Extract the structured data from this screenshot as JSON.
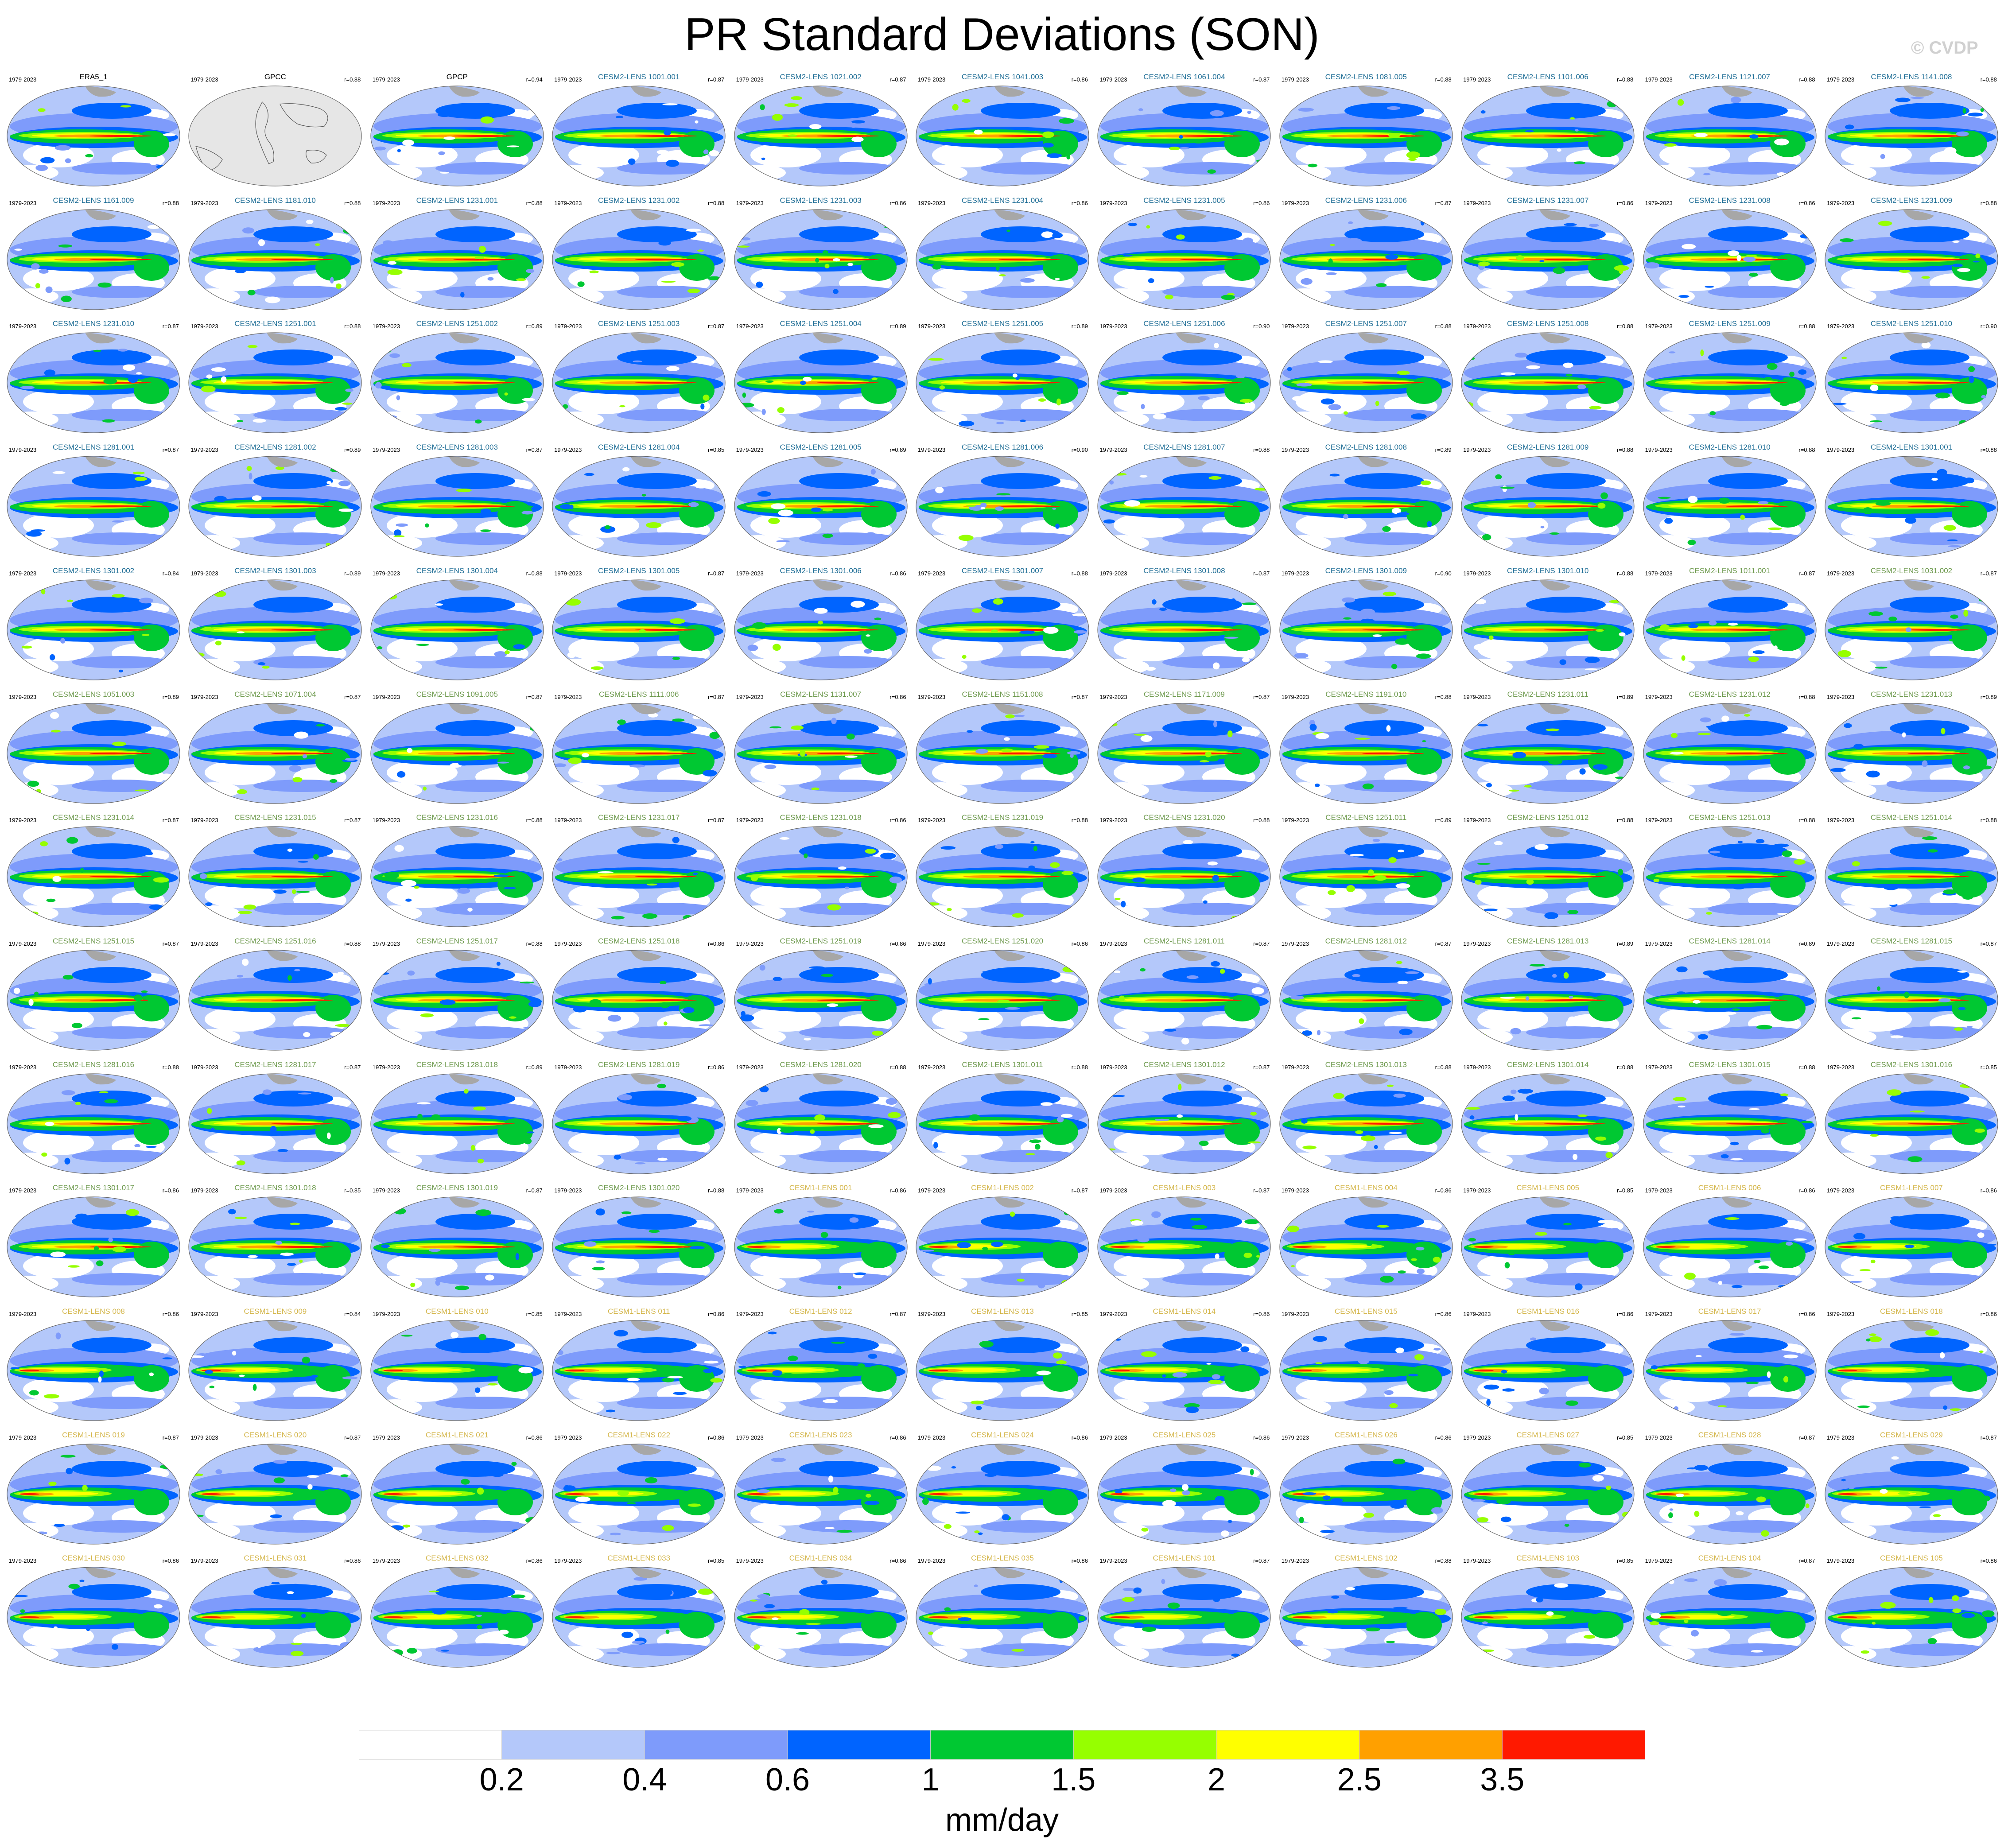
{
  "title": "PR Standard Deviations (SON)",
  "watermark": "© CVDP",
  "period_label": "1979-2023",
  "ensemble_colors": {
    "obs": "#000000",
    "CESM2-LENS-first50": "#1f6e96",
    "CESM2-LENS-second50": "#6e9a4e",
    "CESM1-LENS": "#d4b64a"
  },
  "panels": [
    {
      "title": "ERA5_1",
      "group": "obs",
      "corr": "",
      "kind": "data"
    },
    {
      "title": "GPCC",
      "group": "obs",
      "corr": "r=0.88",
      "kind": "missing"
    },
    {
      "title": "GPCP",
      "group": "obs",
      "corr": "r=0.94",
      "kind": "data"
    },
    {
      "title": "CESM2-LENS 1001.001",
      "group": "CESM2-LENS-first50",
      "corr": "r=0.87",
      "kind": "data"
    },
    {
      "title": "CESM2-LENS 1021.002",
      "group": "CESM2-LENS-first50",
      "corr": "r=0.87",
      "kind": "data"
    },
    {
      "title": "CESM2-LENS 1041.003",
      "group": "CESM2-LENS-first50",
      "corr": "r=0.86",
      "kind": "data"
    },
    {
      "title": "CESM2-LENS 1061.004",
      "group": "CESM2-LENS-first50",
      "corr": "r=0.87",
      "kind": "data"
    },
    {
      "title": "CESM2-LENS 1081.005",
      "group": "CESM2-LENS-first50",
      "corr": "r=0.88",
      "kind": "data"
    },
    {
      "title": "CESM2-LENS 1101.006",
      "group": "CESM2-LENS-first50",
      "corr": "r=0.88",
      "kind": "data"
    },
    {
      "title": "CESM2-LENS 1121.007",
      "group": "CESM2-LENS-first50",
      "corr": "r=0.88",
      "kind": "data"
    },
    {
      "title": "CESM2-LENS 1141.008",
      "group": "CESM2-LENS-first50",
      "corr": "r=0.88",
      "kind": "data"
    },
    {
      "title": "CESM2-LENS 1161.009",
      "group": "CESM2-LENS-first50",
      "corr": "r=0.88",
      "kind": "data"
    },
    {
      "title": "CESM2-LENS 1181.010",
      "group": "CESM2-LENS-first50",
      "corr": "r=0.88",
      "kind": "data"
    },
    {
      "title": "CESM2-LENS 1231.001",
      "group": "CESM2-LENS-first50",
      "corr": "r=0.88",
      "kind": "data"
    },
    {
      "title": "CESM2-LENS 1231.002",
      "group": "CESM2-LENS-first50",
      "corr": "r=0.88",
      "kind": "data"
    },
    {
      "title": "CESM2-LENS 1231.003",
      "group": "CESM2-LENS-first50",
      "corr": "r=0.86",
      "kind": "data"
    },
    {
      "title": "CESM2-LENS 1231.004",
      "group": "CESM2-LENS-first50",
      "corr": "r=0.86",
      "kind": "data"
    },
    {
      "title": "CESM2-LENS 1231.005",
      "group": "CESM2-LENS-first50",
      "corr": "r=0.86",
      "kind": "data"
    },
    {
      "title": "CESM2-LENS 1231.006",
      "group": "CESM2-LENS-first50",
      "corr": "r=0.87",
      "kind": "data"
    },
    {
      "title": "CESM2-LENS 1231.007",
      "group": "CESM2-LENS-first50",
      "corr": "r=0.86",
      "kind": "data"
    },
    {
      "title": "CESM2-LENS 1231.008",
      "group": "CESM2-LENS-first50",
      "corr": "r=0.86",
      "kind": "data"
    },
    {
      "title": "CESM2-LENS 1231.009",
      "group": "CESM2-LENS-first50",
      "corr": "r=0.88",
      "kind": "data"
    },
    {
      "title": "CESM2-LENS 1231.010",
      "group": "CESM2-LENS-first50",
      "corr": "r=0.87",
      "kind": "data"
    },
    {
      "title": "CESM2-LENS 1251.001",
      "group": "CESM2-LENS-first50",
      "corr": "r=0.88",
      "kind": "data"
    },
    {
      "title": "CESM2-LENS 1251.002",
      "group": "CESM2-LENS-first50",
      "corr": "r=0.89",
      "kind": "data"
    },
    {
      "title": "CESM2-LENS 1251.003",
      "group": "CESM2-LENS-first50",
      "corr": "r=0.87",
      "kind": "data"
    },
    {
      "title": "CESM2-LENS 1251.004",
      "group": "CESM2-LENS-first50",
      "corr": "r=0.89",
      "kind": "data"
    },
    {
      "title": "CESM2-LENS 1251.005",
      "group": "CESM2-LENS-first50",
      "corr": "r=0.89",
      "kind": "data"
    },
    {
      "title": "CESM2-LENS 1251.006",
      "group": "CESM2-LENS-first50",
      "corr": "r=0.90",
      "kind": "data"
    },
    {
      "title": "CESM2-LENS 1251.007",
      "group": "CESM2-LENS-first50",
      "corr": "r=0.88",
      "kind": "data"
    },
    {
      "title": "CESM2-LENS 1251.008",
      "group": "CESM2-LENS-first50",
      "corr": "r=0.88",
      "kind": "data"
    },
    {
      "title": "CESM2-LENS 1251.009",
      "group": "CESM2-LENS-first50",
      "corr": "r=0.88",
      "kind": "data"
    },
    {
      "title": "CESM2-LENS 1251.010",
      "group": "CESM2-LENS-first50",
      "corr": "r=0.90",
      "kind": "data"
    },
    {
      "title": "CESM2-LENS 1281.001",
      "group": "CESM2-LENS-first50",
      "corr": "r=0.87",
      "kind": "data"
    },
    {
      "title": "CESM2-LENS 1281.002",
      "group": "CESM2-LENS-first50",
      "corr": "r=0.89",
      "kind": "data"
    },
    {
      "title": "CESM2-LENS 1281.003",
      "group": "CESM2-LENS-first50",
      "corr": "r=0.87",
      "kind": "data"
    },
    {
      "title": "CESM2-LENS 1281.004",
      "group": "CESM2-LENS-first50",
      "corr": "r=0.85",
      "kind": "data"
    },
    {
      "title": "CESM2-LENS 1281.005",
      "group": "CESM2-LENS-first50",
      "corr": "r=0.89",
      "kind": "data"
    },
    {
      "title": "CESM2-LENS 1281.006",
      "group": "CESM2-LENS-first50",
      "corr": "r=0.90",
      "kind": "data"
    },
    {
      "title": "CESM2-LENS 1281.007",
      "group": "CESM2-LENS-first50",
      "corr": "r=0.88",
      "kind": "data"
    },
    {
      "title": "CESM2-LENS 1281.008",
      "group": "CESM2-LENS-first50",
      "corr": "r=0.89",
      "kind": "data"
    },
    {
      "title": "CESM2-LENS 1281.009",
      "group": "CESM2-LENS-first50",
      "corr": "r=0.88",
      "kind": "data"
    },
    {
      "title": "CESM2-LENS 1281.010",
      "group": "CESM2-LENS-first50",
      "corr": "r=0.88",
      "kind": "data"
    },
    {
      "title": "CESM2-LENS 1301.001",
      "group": "CESM2-LENS-first50",
      "corr": "r=0.88",
      "kind": "data"
    },
    {
      "title": "CESM2-LENS 1301.002",
      "group": "CESM2-LENS-first50",
      "corr": "r=0.84",
      "kind": "data"
    },
    {
      "title": "CESM2-LENS 1301.003",
      "group": "CESM2-LENS-first50",
      "corr": "r=0.89",
      "kind": "data"
    },
    {
      "title": "CESM2-LENS 1301.004",
      "group": "CESM2-LENS-first50",
      "corr": "r=0.88",
      "kind": "data"
    },
    {
      "title": "CESM2-LENS 1301.005",
      "group": "CESM2-LENS-first50",
      "corr": "r=0.87",
      "kind": "data"
    },
    {
      "title": "CESM2-LENS 1301.006",
      "group": "CESM2-LENS-first50",
      "corr": "r=0.86",
      "kind": "data"
    },
    {
      "title": "CESM2-LENS 1301.007",
      "group": "CESM2-LENS-first50",
      "corr": "r=0.88",
      "kind": "data"
    },
    {
      "title": "CESM2-LENS 1301.008",
      "group": "CESM2-LENS-first50",
      "corr": "r=0.87",
      "kind": "data"
    },
    {
      "title": "CESM2-LENS 1301.009",
      "group": "CESM2-LENS-first50",
      "corr": "r=0.90",
      "kind": "data"
    },
    {
      "title": "CESM2-LENS 1301.010",
      "group": "CESM2-LENS-first50",
      "corr": "r=0.88",
      "kind": "data"
    },
    {
      "title": "CESM2-LENS 1011.001",
      "group": "CESM2-LENS-second50",
      "corr": "r=0.87",
      "kind": "data"
    },
    {
      "title": "CESM2-LENS 1031.002",
      "group": "CESM2-LENS-second50",
      "corr": "r=0.87",
      "kind": "data"
    },
    {
      "title": "CESM2-LENS 1051.003",
      "group": "CESM2-LENS-second50",
      "corr": "r=0.89",
      "kind": "data"
    },
    {
      "title": "CESM2-LENS 1071.004",
      "group": "CESM2-LENS-second50",
      "corr": "r=0.87",
      "kind": "data"
    },
    {
      "title": "CESM2-LENS 1091.005",
      "group": "CESM2-LENS-second50",
      "corr": "r=0.87",
      "kind": "data"
    },
    {
      "title": "CESM2-LENS 1111.006",
      "group": "CESM2-LENS-second50",
      "corr": "r=0.87",
      "kind": "data"
    },
    {
      "title": "CESM2-LENS 1131.007",
      "group": "CESM2-LENS-second50",
      "corr": "r=0.86",
      "kind": "data"
    },
    {
      "title": "CESM2-LENS 1151.008",
      "group": "CESM2-LENS-second50",
      "corr": "r=0.87",
      "kind": "data"
    },
    {
      "title": "CESM2-LENS 1171.009",
      "group": "CESM2-LENS-second50",
      "corr": "r=0.87",
      "kind": "data"
    },
    {
      "title": "CESM2-LENS 1191.010",
      "group": "CESM2-LENS-second50",
      "corr": "r=0.88",
      "kind": "data"
    },
    {
      "title": "CESM2-LENS 1231.011",
      "group": "CESM2-LENS-second50",
      "corr": "r=0.89",
      "kind": "data"
    },
    {
      "title": "CESM2-LENS 1231.012",
      "group": "CESM2-LENS-second50",
      "corr": "r=0.88",
      "kind": "data"
    },
    {
      "title": "CESM2-LENS 1231.013",
      "group": "CESM2-LENS-second50",
      "corr": "r=0.89",
      "kind": "data"
    },
    {
      "title": "CESM2-LENS 1231.014",
      "group": "CESM2-LENS-second50",
      "corr": "r=0.87",
      "kind": "data"
    },
    {
      "title": "CESM2-LENS 1231.015",
      "group": "CESM2-LENS-second50",
      "corr": "r=0.87",
      "kind": "data"
    },
    {
      "title": "CESM2-LENS 1231.016",
      "group": "CESM2-LENS-second50",
      "corr": "r=0.88",
      "kind": "data"
    },
    {
      "title": "CESM2-LENS 1231.017",
      "group": "CESM2-LENS-second50",
      "corr": "r=0.87",
      "kind": "data"
    },
    {
      "title": "CESM2-LENS 1231.018",
      "group": "CESM2-LENS-second50",
      "corr": "r=0.86",
      "kind": "data"
    },
    {
      "title": "CESM2-LENS 1231.019",
      "group": "CESM2-LENS-second50",
      "corr": "r=0.88",
      "kind": "data"
    },
    {
      "title": "CESM2-LENS 1231.020",
      "group": "CESM2-LENS-second50",
      "corr": "r=0.88",
      "kind": "data"
    },
    {
      "title": "CESM2-LENS 1251.011",
      "group": "CESM2-LENS-second50",
      "corr": "r=0.89",
      "kind": "data"
    },
    {
      "title": "CESM2-LENS 1251.012",
      "group": "CESM2-LENS-second50",
      "corr": "r=0.88",
      "kind": "data"
    },
    {
      "title": "CESM2-LENS 1251.013",
      "group": "CESM2-LENS-second50",
      "corr": "r=0.88",
      "kind": "data"
    },
    {
      "title": "CESM2-LENS 1251.014",
      "group": "CESM2-LENS-second50",
      "corr": "r=0.88",
      "kind": "data"
    },
    {
      "title": "CESM2-LENS 1251.015",
      "group": "CESM2-LENS-second50",
      "corr": "r=0.87",
      "kind": "data"
    },
    {
      "title": "CESM2-LENS 1251.016",
      "group": "CESM2-LENS-second50",
      "corr": "r=0.88",
      "kind": "data"
    },
    {
      "title": "CESM2-LENS 1251.017",
      "group": "CESM2-LENS-second50",
      "corr": "r=0.88",
      "kind": "data"
    },
    {
      "title": "CESM2-LENS 1251.018",
      "group": "CESM2-LENS-second50",
      "corr": "r=0.86",
      "kind": "data"
    },
    {
      "title": "CESM2-LENS 1251.019",
      "group": "CESM2-LENS-second50",
      "corr": "r=0.86",
      "kind": "data"
    },
    {
      "title": "CESM2-LENS 1251.020",
      "group": "CESM2-LENS-second50",
      "corr": "r=0.86",
      "kind": "data"
    },
    {
      "title": "CESM2-LENS 1281.011",
      "group": "CESM2-LENS-second50",
      "corr": "r=0.87",
      "kind": "data"
    },
    {
      "title": "CESM2-LENS 1281.012",
      "group": "CESM2-LENS-second50",
      "corr": "r=0.87",
      "kind": "data"
    },
    {
      "title": "CESM2-LENS 1281.013",
      "group": "CESM2-LENS-second50",
      "corr": "r=0.89",
      "kind": "data"
    },
    {
      "title": "CESM2-LENS 1281.014",
      "group": "CESM2-LENS-second50",
      "corr": "r=0.89",
      "kind": "data"
    },
    {
      "title": "CESM2-LENS 1281.015",
      "group": "CESM2-LENS-second50",
      "corr": "r=0.87",
      "kind": "data"
    },
    {
      "title": "CESM2-LENS 1281.016",
      "group": "CESM2-LENS-second50",
      "corr": "r=0.88",
      "kind": "data"
    },
    {
      "title": "CESM2-LENS 1281.017",
      "group": "CESM2-LENS-second50",
      "corr": "r=0.87",
      "kind": "data"
    },
    {
      "title": "CESM2-LENS 1281.018",
      "group": "CESM2-LENS-second50",
      "corr": "r=0.89",
      "kind": "data"
    },
    {
      "title": "CESM2-LENS 1281.019",
      "group": "CESM2-LENS-second50",
      "corr": "r=0.86",
      "kind": "data"
    },
    {
      "title": "CESM2-LENS 1281.020",
      "group": "CESM2-LENS-second50",
      "corr": "r=0.88",
      "kind": "data"
    },
    {
      "title": "CESM2-LENS 1301.011",
      "group": "CESM2-LENS-second50",
      "corr": "r=0.88",
      "kind": "data"
    },
    {
      "title": "CESM2-LENS 1301.012",
      "group": "CESM2-LENS-second50",
      "corr": "r=0.87",
      "kind": "data"
    },
    {
      "title": "CESM2-LENS 1301.013",
      "group": "CESM2-LENS-second50",
      "corr": "r=0.88",
      "kind": "data"
    },
    {
      "title": "CESM2-LENS 1301.014",
      "group": "CESM2-LENS-second50",
      "corr": "r=0.88",
      "kind": "data"
    },
    {
      "title": "CESM2-LENS 1301.015",
      "group": "CESM2-LENS-second50",
      "corr": "r=0.88",
      "kind": "data"
    },
    {
      "title": "CESM2-LENS 1301.016",
      "group": "CESM2-LENS-second50",
      "corr": "r=0.85",
      "kind": "data"
    },
    {
      "title": "CESM2-LENS 1301.017",
      "group": "CESM2-LENS-second50",
      "corr": "r=0.86",
      "kind": "data"
    },
    {
      "title": "CESM2-LENS 1301.018",
      "group": "CESM2-LENS-second50",
      "corr": "r=0.85",
      "kind": "data"
    },
    {
      "title": "CESM2-LENS 1301.019",
      "group": "CESM2-LENS-second50",
      "corr": "r=0.87",
      "kind": "data"
    },
    {
      "title": "CESM2-LENS 1301.020",
      "group": "CESM2-LENS-second50",
      "corr": "r=0.88",
      "kind": "data"
    },
    {
      "title": "CESM1-LENS 001",
      "group": "CESM1-LENS",
      "corr": "r=0.86",
      "kind": "data"
    },
    {
      "title": "CESM1-LENS 002",
      "group": "CESM1-LENS",
      "corr": "r=0.87",
      "kind": "data"
    },
    {
      "title": "CESM1-LENS 003",
      "group": "CESM1-LENS",
      "corr": "r=0.87",
      "kind": "data"
    },
    {
      "title": "CESM1-LENS 004",
      "group": "CESM1-LENS",
      "corr": "r=0.86",
      "kind": "data"
    },
    {
      "title": "CESM1-LENS 005",
      "group": "CESM1-LENS",
      "corr": "r=0.85",
      "kind": "data"
    },
    {
      "title": "CESM1-LENS 006",
      "group": "CESM1-LENS",
      "corr": "r=0.86",
      "kind": "data"
    },
    {
      "title": "CESM1-LENS 007",
      "group": "CESM1-LENS",
      "corr": "r=0.86",
      "kind": "data"
    },
    {
      "title": "CESM1-LENS 008",
      "group": "CESM1-LENS",
      "corr": "r=0.86",
      "kind": "data"
    },
    {
      "title": "CESM1-LENS 009",
      "group": "CESM1-LENS",
      "corr": "r=0.84",
      "kind": "data"
    },
    {
      "title": "CESM1-LENS 010",
      "group": "CESM1-LENS",
      "corr": "r=0.85",
      "kind": "data"
    },
    {
      "title": "CESM1-LENS 011",
      "group": "CESM1-LENS",
      "corr": "r=0.86",
      "kind": "data"
    },
    {
      "title": "CESM1-LENS 012",
      "group": "CESM1-LENS",
      "corr": "r=0.87",
      "kind": "data"
    },
    {
      "title": "CESM1-LENS 013",
      "group": "CESM1-LENS",
      "corr": "r=0.85",
      "kind": "data"
    },
    {
      "title": "CESM1-LENS 014",
      "group": "CESM1-LENS",
      "corr": "r=0.86",
      "kind": "data"
    },
    {
      "title": "CESM1-LENS 015",
      "group": "CESM1-LENS",
      "corr": "r=0.86",
      "kind": "data"
    },
    {
      "title": "CESM1-LENS 016",
      "group": "CESM1-LENS",
      "corr": "r=0.86",
      "kind": "data"
    },
    {
      "title": "CESM1-LENS 017",
      "group": "CESM1-LENS",
      "corr": "r=0.86",
      "kind": "data"
    },
    {
      "title": "CESM1-LENS 018",
      "group": "CESM1-LENS",
      "corr": "r=0.86",
      "kind": "data"
    },
    {
      "title": "CESM1-LENS 019",
      "group": "CESM1-LENS",
      "corr": "r=0.87",
      "kind": "data"
    },
    {
      "title": "CESM1-LENS 020",
      "group": "CESM1-LENS",
      "corr": "r=0.87",
      "kind": "data"
    },
    {
      "title": "CESM1-LENS 021",
      "group": "CESM1-LENS",
      "corr": "r=0.86",
      "kind": "data"
    },
    {
      "title": "CESM1-LENS 022",
      "group": "CESM1-LENS",
      "corr": "r=0.86",
      "kind": "data"
    },
    {
      "title": "CESM1-LENS 023",
      "group": "CESM1-LENS",
      "corr": "r=0.86",
      "kind": "data"
    },
    {
      "title": "CESM1-LENS 024",
      "group": "CESM1-LENS",
      "corr": "r=0.86",
      "kind": "data"
    },
    {
      "title": "CESM1-LENS 025",
      "group": "CESM1-LENS",
      "corr": "r=0.86",
      "kind": "data"
    },
    {
      "title": "CESM1-LENS 026",
      "group": "CESM1-LENS",
      "corr": "r=0.86",
      "kind": "data"
    },
    {
      "title": "CESM1-LENS 027",
      "group": "CESM1-LENS",
      "corr": "r=0.85",
      "kind": "data"
    },
    {
      "title": "CESM1-LENS 028",
      "group": "CESM1-LENS",
      "corr": "r=0.87",
      "kind": "data"
    },
    {
      "title": "CESM1-LENS 029",
      "group": "CESM1-LENS",
      "corr": "r=0.87",
      "kind": "data"
    },
    {
      "title": "CESM1-LENS 030",
      "group": "CESM1-LENS",
      "corr": "r=0.86",
      "kind": "data"
    },
    {
      "title": "CESM1-LENS 031",
      "group": "CESM1-LENS",
      "corr": "r=0.86",
      "kind": "data"
    },
    {
      "title": "CESM1-LENS 032",
      "group": "CESM1-LENS",
      "corr": "r=0.86",
      "kind": "data"
    },
    {
      "title": "CESM1-LENS 033",
      "group": "CESM1-LENS",
      "corr": "r=0.85",
      "kind": "data"
    },
    {
      "title": "CESM1-LENS 034",
      "group": "CESM1-LENS",
      "corr": "r=0.86",
      "kind": "data"
    },
    {
      "title": "CESM1-LENS 035",
      "group": "CESM1-LENS",
      "corr": "r=0.86",
      "kind": "data"
    },
    {
      "title": "CESM1-LENS 101",
      "group": "CESM1-LENS",
      "corr": "r=0.87",
      "kind": "data"
    },
    {
      "title": "CESM1-LENS 102",
      "group": "CESM1-LENS",
      "corr": "r=0.88",
      "kind": "data"
    },
    {
      "title": "CESM1-LENS 103",
      "group": "CESM1-LENS",
      "corr": "r=0.85",
      "kind": "data"
    },
    {
      "title": "CESM1-LENS 104",
      "group": "CESM1-LENS",
      "corr": "r=0.87",
      "kind": "data"
    },
    {
      "title": "CESM1-LENS 105",
      "group": "CESM1-LENS",
      "corr": "r=0.86",
      "kind": "data"
    }
  ],
  "colorbar": {
    "units": "mm/day",
    "bins": [
      "#ffffff",
      "#b4c8fa",
      "#7e9bfb",
      "#0064ff",
      "#00c832",
      "#96ff00",
      "#ffff00",
      "#ffa000",
      "#ff1900"
    ],
    "tick_labels": [
      "0.2",
      "0.4",
      "0.6",
      "1",
      "1.5",
      "2",
      "2.5",
      "3.5"
    ]
  },
  "map_palette": {
    "ocean_low": "#ffffff",
    "band_light": "#b4c8fa",
    "band_mid": "#7e9bfb",
    "band_blue": "#0064ff",
    "band_green": "#00c832",
    "band_lime": "#96ff00",
    "band_yellow": "#ffff00",
    "band_orange": "#ffa000",
    "band_red": "#ff1900",
    "land": "#a7a7a7",
    "missing": "#e6e6e6"
  }
}
